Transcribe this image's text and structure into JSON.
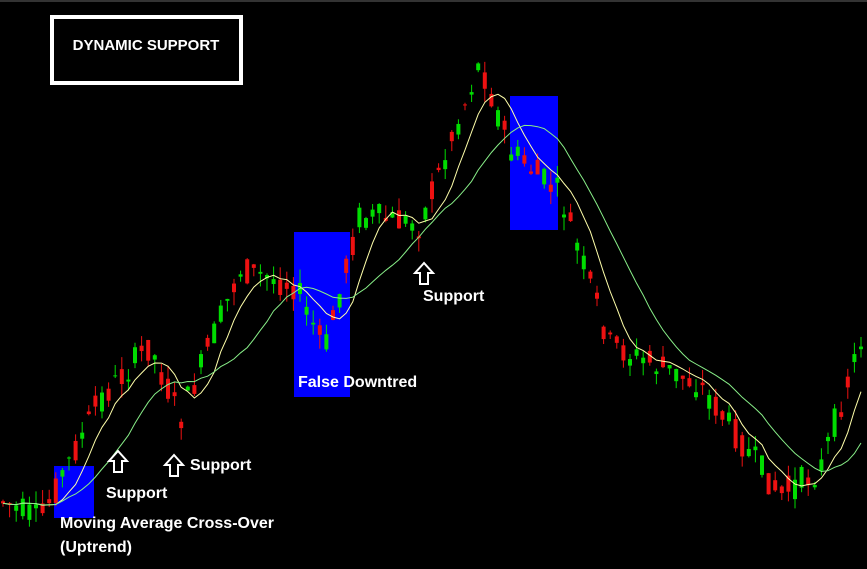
{
  "chart_data": {
    "type": "candlestick",
    "title": "DYNAMIC SUPPORT",
    "annotations": [
      "Moving Average Cross-Over",
      "(Uptrend)",
      "Support",
      "Support",
      "False Downtred",
      "Support"
    ]
  }
}
